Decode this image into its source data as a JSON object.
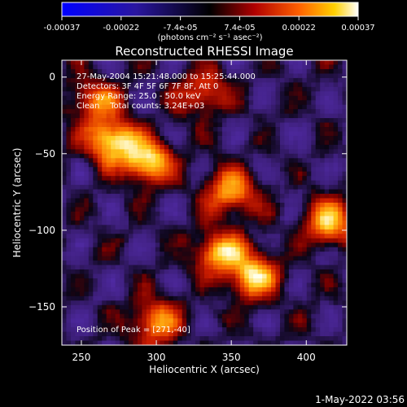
{
  "colorbar": {
    "ticks": [
      "-0.00037",
      "-0.00022",
      "-7.4e-05",
      "7.4e-05",
      "0.00022",
      "0.00037"
    ],
    "unit_label": "(photons cm⁻² s⁻¹ asec⁻²)",
    "range": [
      -0.00037,
      0.00037
    ]
  },
  "chart_data": {
    "type": "heatmap",
    "title": "Reconstructed RHESSI Image",
    "xlabel": "Heliocentric X (arcsec)",
    "ylabel": "Heliocentric Y (arcsec)",
    "xlim": [
      237,
      427
    ],
    "ylim": [
      -175,
      11
    ],
    "xticks": [
      "250",
      "300",
      "350",
      "400"
    ],
    "yticks": [
      "0",
      "−50",
      "−100",
      "−150"
    ],
    "xtick_values": [
      250,
      300,
      350,
      400
    ],
    "ytick_values": [
      0,
      -50,
      -100,
      -150
    ],
    "annotations": [
      "27-May-2004 15:21:48.000 to 15:25:44.000",
      "Detectors: 3F 4F 5F 6F 7F 8F, Att 0",
      "Energy Range: 25.0 - 50.0 keV",
      "Clean    Total counts: 3.24E+03"
    ],
    "peak_label": "Position of Peak = [271,-40]",
    "peak": [
      271,
      -40
    ],
    "bright_regions": [
      {
        "x": 270,
        "y": -42,
        "level": 1.0
      },
      {
        "x": 295,
        "y": -55,
        "level": 0.9
      },
      {
        "x": 343,
        "y": -115,
        "level": 0.8
      },
      {
        "x": 415,
        "y": -95,
        "level": 0.8
      },
      {
        "x": 365,
        "y": -130,
        "level": 0.85
      },
      {
        "x": 350,
        "y": -75,
        "level": 0.75
      },
      {
        "x": 260,
        "y": -15,
        "level": 0.6
      },
      {
        "x": 330,
        "y": -10,
        "level": 0.55
      },
      {
        "x": 300,
        "y": -160,
        "level": 0.7
      }
    ]
  },
  "footer": {
    "timestamp": "1-May-2022 03:56"
  }
}
